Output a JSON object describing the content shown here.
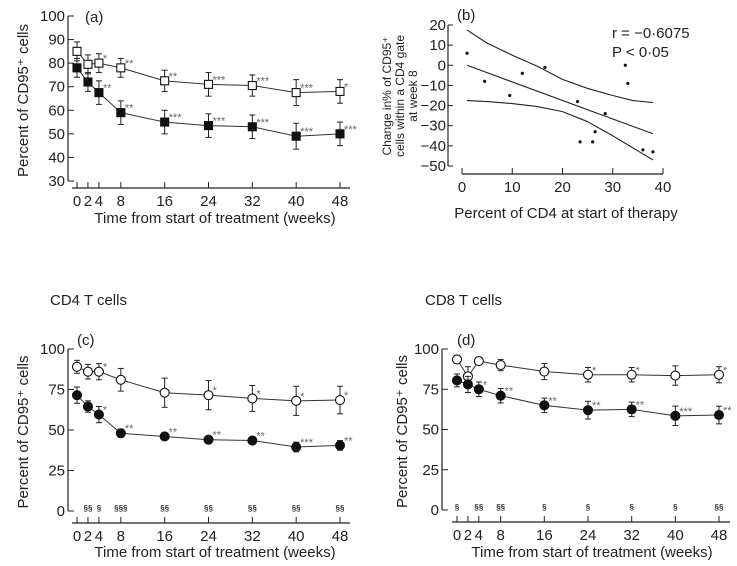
{
  "chart_data": [
    {
      "id": "a",
      "type": "line",
      "panel_label": "(a)",
      "title": "",
      "xlabel": "Time from start of treatment (weeks)",
      "ylabel": "Percent of CD95⁺ cells",
      "x": [
        0,
        2,
        4,
        8,
        16,
        24,
        32,
        40,
        48
      ],
      "xticks": [
        "0",
        "2",
        "4",
        "8",
        "16",
        "24",
        "32",
        "40",
        "48"
      ],
      "ylim": [
        30,
        100
      ],
      "yticks": [
        30,
        40,
        50,
        60,
        70,
        80,
        90,
        100
      ],
      "marker": "square",
      "series": [
        {
          "name": "open",
          "fill": "open",
          "values": [
            85,
            79.5,
            80,
            78,
            72.5,
            71,
            70.5,
            67.5,
            68
          ],
          "err": [
            4,
            4,
            4,
            4,
            4.5,
            5,
            4.5,
            5.5,
            5
          ],
          "stars": [
            "",
            "",
            "*",
            "**",
            "**",
            "***",
            "***",
            "***",
            "*"
          ]
        },
        {
          "name": "filled",
          "fill": "filled",
          "values": [
            78,
            72,
            67.5,
            59,
            55,
            53.5,
            53,
            49,
            50
          ],
          "err": [
            4,
            4,
            5,
            5,
            5,
            5,
            5,
            5.5,
            5
          ],
          "stars": [
            "",
            "",
            "**",
            "**",
            "***",
            "***",
            "***",
            "***",
            "***"
          ]
        }
      ]
    },
    {
      "id": "b",
      "type": "scatter",
      "panel_label": "(b)",
      "xlabel": "Percent of CD4 at start of therapy",
      "ylabel_lines": [
        "Change in% of CD95⁺",
        "cells within a CD4 gate",
        "at week 8"
      ],
      "xlim": [
        0,
        40
      ],
      "xticks": [
        0,
        10,
        20,
        30,
        40
      ],
      "ylim": [
        -50,
        20
      ],
      "yticks": [
        20,
        10,
        0,
        -10,
        -20,
        -30,
        -40,
        -50
      ],
      "ytick_labels": [
        "20",
        "10",
        "0",
        "−10",
        "−20",
        "−30",
        "−40",
        "−50"
      ],
      "annotation": [
        "r = −0·6075",
        "P < 0·05"
      ],
      "points": [
        [
          1,
          6
        ],
        [
          4.5,
          -8
        ],
        [
          9.5,
          -15
        ],
        [
          12,
          -4
        ],
        [
          16.5,
          -1
        ],
        [
          23,
          -18
        ],
        [
          23.5,
          -38
        ],
        [
          26,
          -38
        ],
        [
          26.5,
          -33
        ],
        [
          28.5,
          -24
        ],
        [
          32.5,
          0
        ],
        [
          33,
          -9
        ],
        [
          36,
          -42
        ],
        [
          38,
          -43
        ]
      ],
      "regression": [
        [
          1,
          0
        ],
        [
          38,
          -34
        ]
      ],
      "ci_upper": [
        [
          1,
          17.5
        ],
        [
          5,
          11
        ],
        [
          10,
          5
        ],
        [
          15,
          -0.5
        ],
        [
          20,
          -7
        ],
        [
          25,
          -11.5
        ],
        [
          30,
          -15
        ],
        [
          34,
          -17.5
        ],
        [
          38,
          -18.5
        ]
      ],
      "ci_lower": [
        [
          1,
          -17.5
        ],
        [
          5,
          -18
        ],
        [
          10,
          -19
        ],
        [
          15,
          -20.5
        ],
        [
          20,
          -23
        ],
        [
          25,
          -28
        ],
        [
          30,
          -35
        ],
        [
          34,
          -41
        ],
        [
          38,
          -47
        ]
      ]
    },
    {
      "id": "c",
      "type": "line",
      "panel_label": "(c)",
      "title": "CD4 T cells",
      "xlabel": "Time from start of treatment (weeks)",
      "ylabel": "Percent of CD95⁺ cells",
      "x": [
        0,
        2,
        4,
        8,
        16,
        24,
        32,
        40,
        48
      ],
      "xticks": [
        "0",
        "2",
        "4",
        "8",
        "16",
        "24",
        "32",
        "40",
        "48"
      ],
      "ylim": [
        0,
        100
      ],
      "yticks": [
        0,
        25,
        50,
        75,
        100
      ],
      "marker": "circle",
      "section_marks": [
        "",
        "§§",
        "§",
        "§§§",
        "§§",
        "§§",
        "§§",
        "§§",
        "§§"
      ],
      "series": [
        {
          "name": "open",
          "fill": "open",
          "values": [
            89,
            86,
            86,
            81,
            73,
            71.5,
            69.5,
            68,
            68.5
          ],
          "err": [
            4,
            4.5,
            5,
            7,
            9,
            9,
            8,
            9,
            8.5
          ],
          "stars": [
            "",
            "",
            "*",
            "",
            "",
            "*",
            "*",
            "*",
            "*"
          ]
        },
        {
          "name": "filled",
          "fill": "filled",
          "values": [
            71.5,
            64.5,
            59.5,
            48,
            46,
            44,
            43.5,
            39.5,
            40.5
          ],
          "err": [
            5,
            3.5,
            5,
            2.5,
            2,
            2,
            1.5,
            3,
            3
          ],
          "stars": [
            "",
            "",
            "*",
            "**",
            "**",
            "**",
            "**",
            "***",
            "**"
          ]
        }
      ]
    },
    {
      "id": "d",
      "type": "line",
      "panel_label": "(d)",
      "title": "CD8 T cells",
      "xlabel": "Time from start of treatment (weeks)",
      "ylabel": "Percent of CD95⁺ cells",
      "x": [
        0,
        2,
        4,
        8,
        16,
        24,
        32,
        40,
        48
      ],
      "xticks": [
        "0",
        "2",
        "4",
        "8",
        "16",
        "24",
        "32",
        "40",
        "48"
      ],
      "ylim": [
        0,
        100
      ],
      "yticks": [
        0,
        25,
        50,
        75,
        100
      ],
      "marker": "circle",
      "section_marks": [
        "§",
        "",
        "§§",
        "§§",
        "§",
        "§",
        "§",
        "§",
        "§§"
      ],
      "series": [
        {
          "name": "open",
          "fill": "open",
          "values": [
            93.5,
            83,
            92.5,
            90,
            86,
            84,
            84,
            83.5,
            84
          ],
          "err": [
            2.5,
            6,
            2,
            3.5,
            5,
            4.5,
            4.5,
            6,
            5
          ],
          "stars": [
            "",
            "",
            "",
            "",
            "",
            "*",
            "*",
            "",
            "*"
          ]
        },
        {
          "name": "filled",
          "fill": "filled",
          "values": [
            80.5,
            78,
            75,
            71,
            65,
            62,
            62.5,
            58.5,
            59
          ],
          "err": [
            4,
            5,
            4.5,
            4.5,
            4.5,
            5.5,
            4.5,
            6,
            5.5
          ],
          "stars": [
            "",
            "",
            "*",
            "**",
            "**",
            "**",
            "**",
            "***",
            "**"
          ]
        }
      ]
    }
  ]
}
